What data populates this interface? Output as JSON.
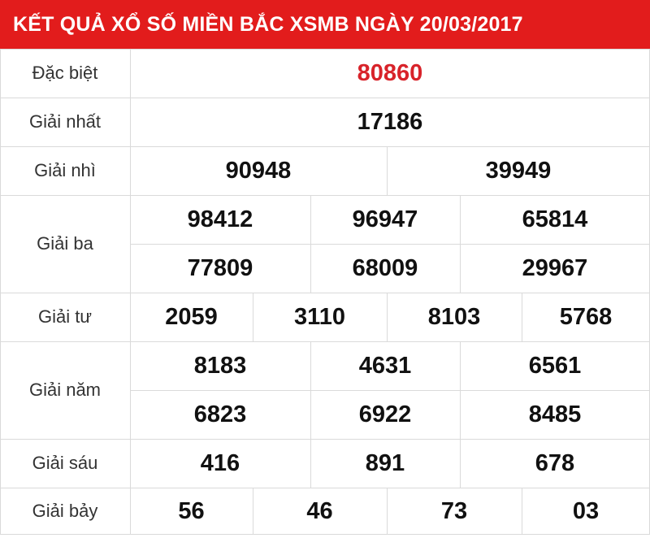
{
  "title": "KẾT QUẢ XỔ SỐ MIỀN BẮC XSMB NGÀY 20/03/2017",
  "accent_color": "#e21c1c",
  "special_color": "#d8232a",
  "prizes": [
    {
      "label": "Đặc biệt",
      "numbers": [
        "80860"
      ]
    },
    {
      "label": "Giải nhất",
      "numbers": [
        "17186"
      ]
    },
    {
      "label": "Giải nhì",
      "numbers": [
        "90948",
        "39949"
      ]
    },
    {
      "label": "Giải ba",
      "numbers": [
        "98412",
        "96947",
        "65814",
        "77809",
        "68009",
        "29967"
      ]
    },
    {
      "label": "Giải tư",
      "numbers": [
        "2059",
        "3110",
        "8103",
        "5768"
      ]
    },
    {
      "label": "Giải năm",
      "numbers": [
        "8183",
        "4631",
        "6561",
        "6823",
        "6922",
        "8485"
      ]
    },
    {
      "label": "Giải sáu",
      "numbers": [
        "416",
        "891",
        "678"
      ]
    },
    {
      "label": "Giải bảy",
      "numbers": [
        "56",
        "46",
        "73",
        "03"
      ]
    }
  ]
}
